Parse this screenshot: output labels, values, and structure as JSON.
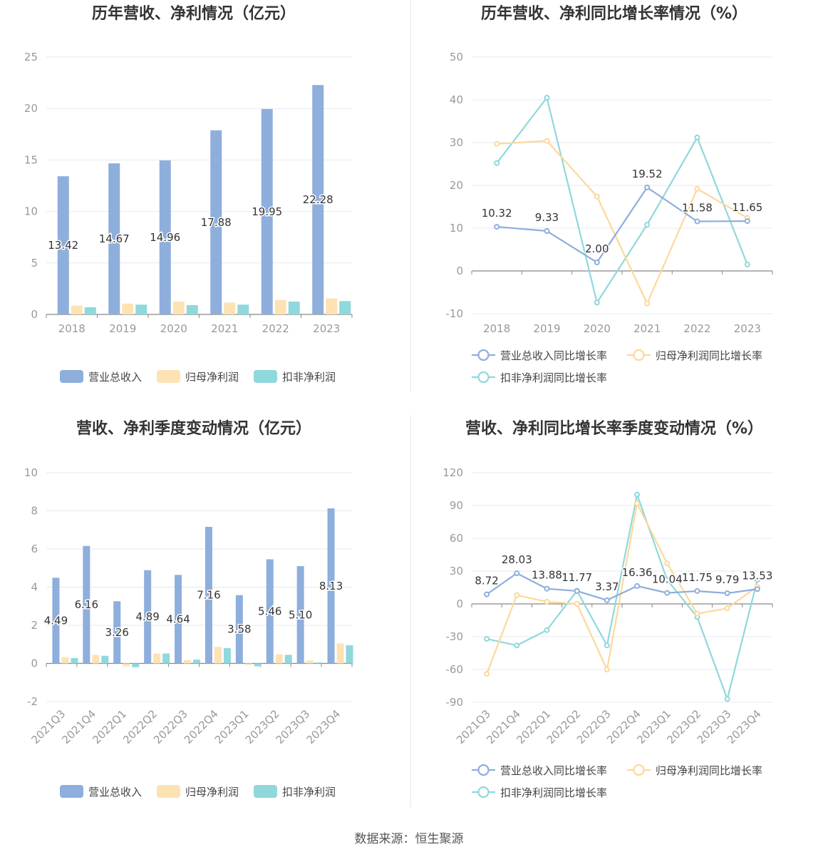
{
  "colors": {
    "revenue": "#8eaedc",
    "net_profit": "#fde2b3",
    "deducted_profit": "#8fd8dc",
    "revenue_line": "#8eaedc",
    "net_profit_line": "#fdd89b",
    "deducted_line": "#8fd8dc",
    "grid": "#e6e9f0",
    "axis": "#888888"
  },
  "source_text": "数据来源：恒生聚源",
  "chart_data": [
    {
      "type": "bar",
      "title": "历年营收、净利情况（亿元）",
      "categories": [
        "2018",
        "2019",
        "2020",
        "2021",
        "2022",
        "2023"
      ],
      "ylim": [
        0,
        25
      ],
      "yticks": [
        0,
        5,
        10,
        15,
        20,
        25
      ],
      "grid": true,
      "legend_position": "bottom",
      "series": [
        {
          "name": "营业总收入",
          "values": [
            13.42,
            14.67,
            14.96,
            17.88,
            19.95,
            22.28
          ],
          "labels": [
            "13.42",
            "14.67",
            "14.96",
            "17.88",
            "19.95",
            "22.28"
          ]
        },
        {
          "name": "归母净利润",
          "values": [
            0.85,
            1.05,
            1.25,
            1.15,
            1.4,
            1.55
          ]
        },
        {
          "name": "扣非净利润",
          "values": [
            0.7,
            0.95,
            0.9,
            0.95,
            1.25,
            1.3
          ]
        }
      ]
    },
    {
      "type": "line",
      "title": "历年营收、净利同比增长率情况（%）",
      "categories": [
        "2018",
        "2019",
        "2020",
        "2021",
        "2022",
        "2023"
      ],
      "ylim": [
        -10,
        50
      ],
      "yticks": [
        -10,
        0,
        10,
        20,
        30,
        40,
        50
      ],
      "grid": true,
      "legend_position": "bottom",
      "series": [
        {
          "name": "营业总收入同比增长率",
          "values": [
            10.32,
            9.33,
            2.0,
            19.52,
            11.58,
            11.65
          ],
          "labels": [
            "10.32",
            "9.33",
            "2.00",
            "19.52",
            "11.58",
            "11.65"
          ]
        },
        {
          "name": "归母净利润同比增长率",
          "values": [
            29.7,
            30.4,
            17.4,
            -7.6,
            19.2,
            12.4
          ]
        },
        {
          "name": "扣非净利润同比增长率",
          "values": [
            25.2,
            40.5,
            -7.4,
            10.8,
            31.2,
            1.5
          ]
        }
      ]
    },
    {
      "type": "bar",
      "title": "营收、净利季度变动情况（亿元）",
      "categories": [
        "2021Q3",
        "2021Q4",
        "2022Q1",
        "2022Q2",
        "2022Q3",
        "2022Q4",
        "2023Q1",
        "2023Q2",
        "2023Q3",
        "2023Q4"
      ],
      "ylim": [
        -2,
        10
      ],
      "yticks": [
        -2,
        0,
        2,
        4,
        6,
        8,
        10
      ],
      "grid": true,
      "legend_position": "bottom",
      "series": [
        {
          "name": "营业总收入",
          "values": [
            4.49,
            6.16,
            3.26,
            4.89,
            4.64,
            7.16,
            3.58,
            5.46,
            5.1,
            8.13
          ],
          "labels": [
            "4.49",
            "6.16",
            "3.26",
            "4.89",
            "4.64",
            "7.16",
            "3.58",
            "5.46",
            "5.10",
            "8.13"
          ]
        },
        {
          "name": "归母净利润",
          "values": [
            0.33,
            0.45,
            -0.15,
            0.52,
            0.17,
            0.87,
            -0.08,
            0.48,
            0.15,
            1.05
          ]
        },
        {
          "name": "扣非净利润",
          "values": [
            0.28,
            0.4,
            -0.2,
            0.52,
            0.2,
            0.8,
            -0.15,
            0.45,
            0.05,
            0.95
          ]
        }
      ]
    },
    {
      "type": "line",
      "title": "营收、净利同比增长率季度变动情况（%）",
      "categories": [
        "2021Q3",
        "2021Q4",
        "2022Q1",
        "2022Q2",
        "2022Q3",
        "2022Q4",
        "2023Q1",
        "2023Q2",
        "2023Q3",
        "2023Q4"
      ],
      "ylim": [
        -90,
        120
      ],
      "yticks": [
        -90,
        -60,
        -30,
        0,
        30,
        60,
        90,
        120
      ],
      "grid": true,
      "legend_position": "bottom",
      "series": [
        {
          "name": "营业总收入同比增长率",
          "values": [
            8.72,
            28.03,
            13.88,
            11.77,
            3.37,
            16.36,
            10.04,
            11.75,
            9.79,
            13.53
          ],
          "labels": [
            "8.72",
            "28.03",
            "13.88",
            "11.77",
            "3.37",
            "16.36",
            "10.04",
            "11.75",
            "9.79",
            "13.53"
          ]
        },
        {
          "name": "归母净利润同比增长率",
          "values": [
            -64,
            8,
            2,
            0,
            -60,
            92,
            37,
            -9,
            -4,
            16
          ]
        },
        {
          "name": "扣非净利润同比增长率",
          "values": [
            -32,
            -38,
            -24,
            12,
            -38,
            100,
            22,
            -12,
            -87,
            22
          ]
        }
      ]
    }
  ]
}
